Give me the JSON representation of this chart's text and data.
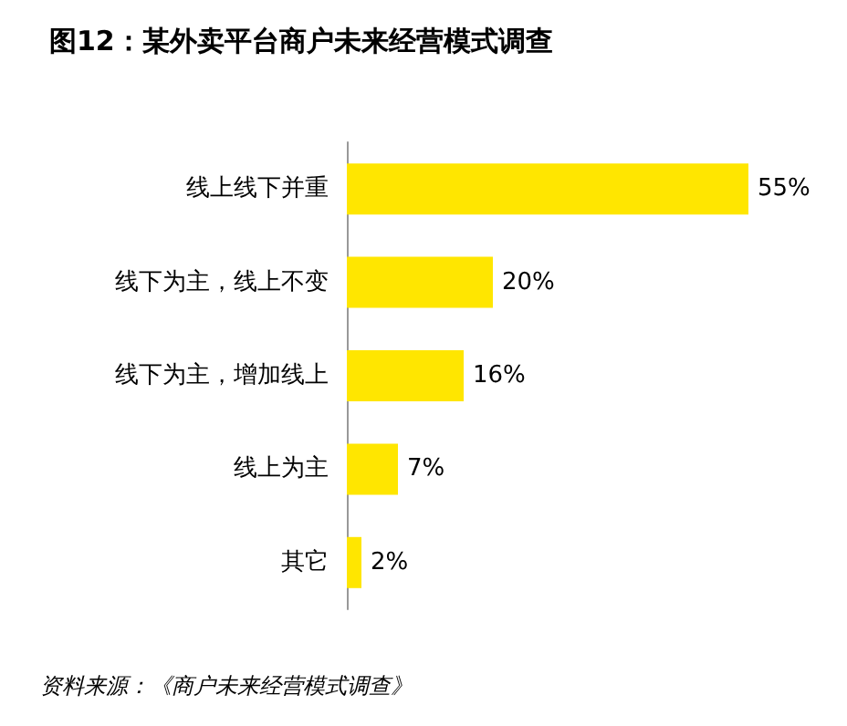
{
  "chart_data": {
    "type": "bar",
    "orientation": "horizontal",
    "title": "图12：某外卖平台商户未来经营模式调查",
    "categories": [
      "线上线下并重",
      "线下为主，线上不变",
      "线下为主，增加线上",
      "线上为主",
      "其它"
    ],
    "values": [
      55,
      20,
      16,
      7,
      2
    ],
    "color": "#ffe600",
    "value_labels": [
      "55%",
      "20%",
      "16%",
      "7%",
      "2%"
    ],
    "annotations": [
      "资料来源：《商户未来经营模式调查》"
    ]
  }
}
